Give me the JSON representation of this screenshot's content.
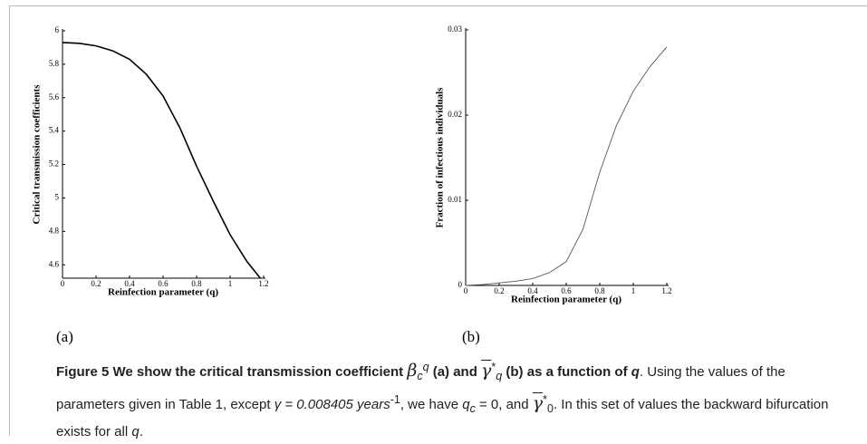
{
  "chart_data": [
    {
      "type": "line",
      "ylabel": "Critical transmission coefficients",
      "xlabel": "Reinfection parameter (q)",
      "x": [
        0,
        0.1,
        0.2,
        0.3,
        0.4,
        0.5,
        0.6,
        0.7,
        0.8,
        0.9,
        1.0,
        1.1,
        1.18
      ],
      "series": [
        {
          "color": "#000000",
          "values": [
            5.93,
            5.925,
            5.91,
            5.88,
            5.83,
            5.74,
            5.61,
            5.42,
            5.19,
            4.98,
            4.78,
            4.62,
            4.52
          ]
        }
      ],
      "xlim": [
        0,
        1.2
      ],
      "xticks": [
        0,
        0.2,
        0.4,
        0.6,
        0.8,
        1,
        1.2
      ],
      "ylim": [
        4.52,
        6
      ],
      "yticks": [
        4.6,
        4.8,
        5,
        5.2,
        5.4,
        5.6,
        5.8,
        6
      ],
      "panel": "(a)"
    },
    {
      "type": "line",
      "ylabel": "Fraction of infectious individuals",
      "xlabel": "Reinfection parameter (q)",
      "x": [
        0,
        0.1,
        0.2,
        0.3,
        0.4,
        0.5,
        0.6,
        0.7,
        0.8,
        0.9,
        1.0,
        1.1,
        1.2
      ],
      "series": [
        {
          "color": "#555555",
          "values": [
            0,
            0.0001,
            0.0003,
            0.0005,
            0.0008,
            0.0015,
            0.0028,
            0.0066,
            0.0133,
            0.0188,
            0.0228,
            0.0257,
            0.028
          ]
        }
      ],
      "xlim": [
        0,
        1.2
      ],
      "xticks": [
        0,
        0.2,
        0.4,
        0.6,
        0.8,
        1,
        1.2
      ],
      "ylim": [
        0,
        0.03
      ],
      "yticks": [
        0,
        0.01,
        0.02,
        0.03
      ],
      "panel": "(b)"
    }
  ],
  "caption": [
    "Figure 5",
    " We show the critical transmission coefficient ",
    "β",
    "c",
    "q",
    " (a) and ",
    "γ",
    "*",
    "q",
    " (b) as a function of ",
    "q",
    ". Using the values of the parameters given in Table 1, except ",
    "γ = 0.008405 years",
    "-1",
    ", we have ",
    "q",
    "c",
    " = 0, and ",
    "γ",
    "*",
    "0",
    ". In this set of values the backward bifurcation exists for all ",
    "q",
    "."
  ]
}
